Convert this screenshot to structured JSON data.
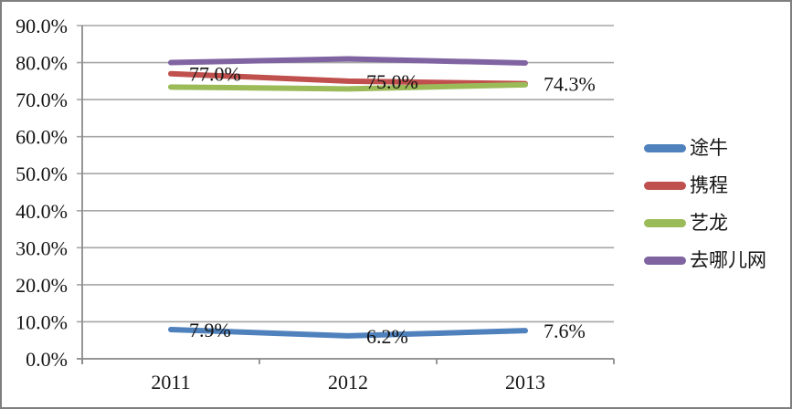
{
  "chart_data": {
    "type": "line",
    "categories": [
      "2011",
      "2012",
      "2013"
    ],
    "series": [
      {
        "key": "tuniu",
        "name": "途牛",
        "color": "#4F81BD",
        "values": [
          7.9,
          6.2,
          7.6
        ],
        "labels": [
          "7.9%",
          "6.2%",
          "7.6%"
        ]
      },
      {
        "key": "ctrip",
        "name": "携程",
        "color": "#C0504D",
        "values": [
          77.0,
          75.0,
          74.3
        ],
        "labels": [
          "77.0%",
          "75.0%",
          "74.3%"
        ]
      },
      {
        "key": "elong",
        "name": "艺龙",
        "color": "#9BBB59",
        "values": [
          73.4,
          72.9,
          74.0
        ],
        "labels": null
      },
      {
        "key": "qunar",
        "name": "去哪儿网",
        "color": "#8064A2",
        "values": [
          80.0,
          81.0,
          79.9
        ],
        "labels": null
      }
    ],
    "title": "",
    "xlabel": "",
    "ylabel": "",
    "y_axis": {
      "min": 0,
      "max": 90,
      "step": 10,
      "tick_values": [
        0,
        10,
        20,
        30,
        40,
        50,
        60,
        70,
        80,
        90
      ],
      "tick_labels": [
        "0.0%",
        "10.0%",
        "20.0%",
        "30.0%",
        "40.0%",
        "50.0%",
        "60.0%",
        "70.0%",
        "80.0%",
        "90.0%"
      ]
    },
    "legend_position": "right",
    "grid": true,
    "grid_color": "#A6A6A6",
    "axis_color": "#8C8C8C",
    "frame_border_color": "#7f7f7f",
    "text_color": "#151515"
  }
}
